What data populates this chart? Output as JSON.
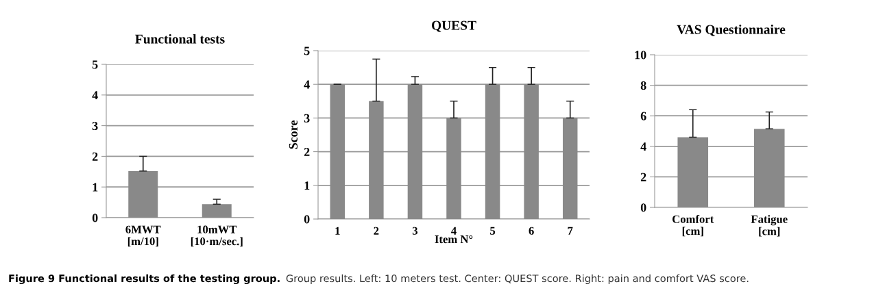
{
  "chart_data": [
    {
      "type": "bar",
      "title": "Functional tests",
      "categories": [
        "6MWT\n[m/10]",
        "10mWT\n[10·m/sec.]"
      ],
      "values": [
        1.52,
        0.44
      ],
      "errors": [
        [
          1.52,
          2.0
        ],
        [
          0.44,
          0.6
        ]
      ],
      "color": "#898989",
      "ylim": [
        0,
        5
      ],
      "yticks": [
        0,
        1,
        2,
        3,
        4,
        5
      ],
      "grid": "y"
    },
    {
      "type": "bar",
      "title": "QUEST",
      "ylabel": "Score",
      "xlabel": "Item N°",
      "categories": [
        "1",
        "2",
        "3",
        "4",
        "5",
        "6",
        "7"
      ],
      "values": [
        4,
        3.5,
        4,
        3,
        4,
        4,
        3
      ],
      "errors": [
        [
          4,
          4
        ],
        [
          3.5,
          4.75
        ],
        [
          4,
          4.23
        ],
        [
          3,
          3.5
        ],
        [
          4,
          4.5
        ],
        [
          4,
          4.5
        ],
        [
          3,
          3.5
        ]
      ],
      "color": "#898989",
      "ylim": [
        0,
        5
      ],
      "yticks": [
        0,
        1,
        2,
        3,
        4,
        5
      ],
      "grid": "y"
    },
    {
      "type": "bar",
      "title": "VAS Questionnaire",
      "categories": [
        "Comfort\n[cm]",
        "Fatigue\n[cm]"
      ],
      "values": [
        4.6,
        5.15
      ],
      "errors": [
        [
          4.6,
          6.4
        ],
        [
          5.15,
          6.25
        ]
      ],
      "color": "#898989",
      "ylim": [
        0,
        10
      ],
      "yticks": [
        0,
        2,
        4,
        6,
        8,
        10
      ],
      "grid": "y",
      "annotations": [
        "Figure 9 Functional results of the testing group.",
        "Group results. Left: 10 meters test. Center: QUEST score. Right: pain and comfort VAS score."
      ]
    }
  ]
}
